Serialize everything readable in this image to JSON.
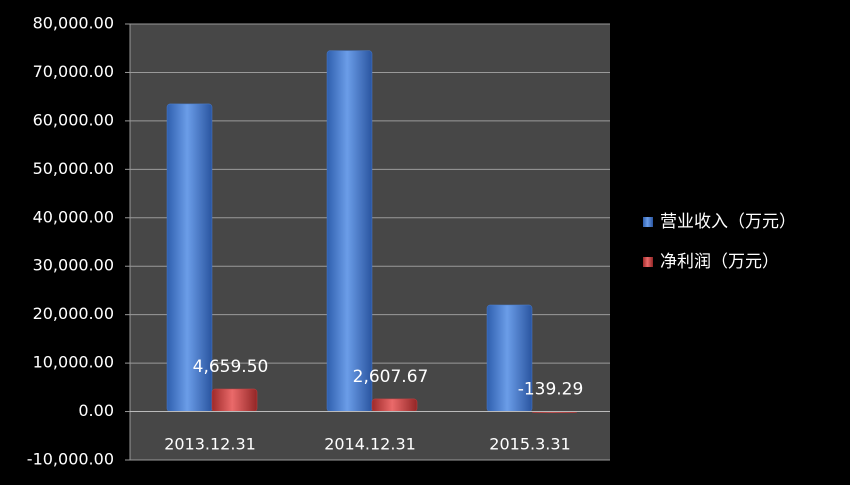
{
  "chart_data": {
    "type": "bar",
    "categories": [
      "2013.12.31",
      "2014.12.31",
      "2015.3.31"
    ],
    "series": [
      {
        "name": "营业收入（万元）",
        "color": "#4a7fd0",
        "values": [
          63500,
          74500,
          22000
        ]
      },
      {
        "name": "净利润（万元）",
        "color": "#c94040",
        "values": [
          4659.5,
          2607.67,
          -139.29
        ],
        "value_labels": [
          "4,659.50",
          "2,607.67",
          "-139.29"
        ]
      }
    ],
    "ylim": [
      -10000,
      80000
    ],
    "yticks": [
      {
        "value": -10000,
        "label": "-10,000.00"
      },
      {
        "value": 0,
        "label": "0.00"
      },
      {
        "value": 10000,
        "label": "10,000.00"
      },
      {
        "value": 20000,
        "label": "20,000.00"
      },
      {
        "value": 30000,
        "label": "30,000.00"
      },
      {
        "value": 40000,
        "label": "40,000.00"
      },
      {
        "value": 50000,
        "label": "50,000.00"
      },
      {
        "value": 60000,
        "label": "60,000.00"
      },
      {
        "value": 70000,
        "label": "70,000.00"
      },
      {
        "value": 80000,
        "label": "80,000.00"
      }
    ],
    "grid": true,
    "legend": "right"
  }
}
